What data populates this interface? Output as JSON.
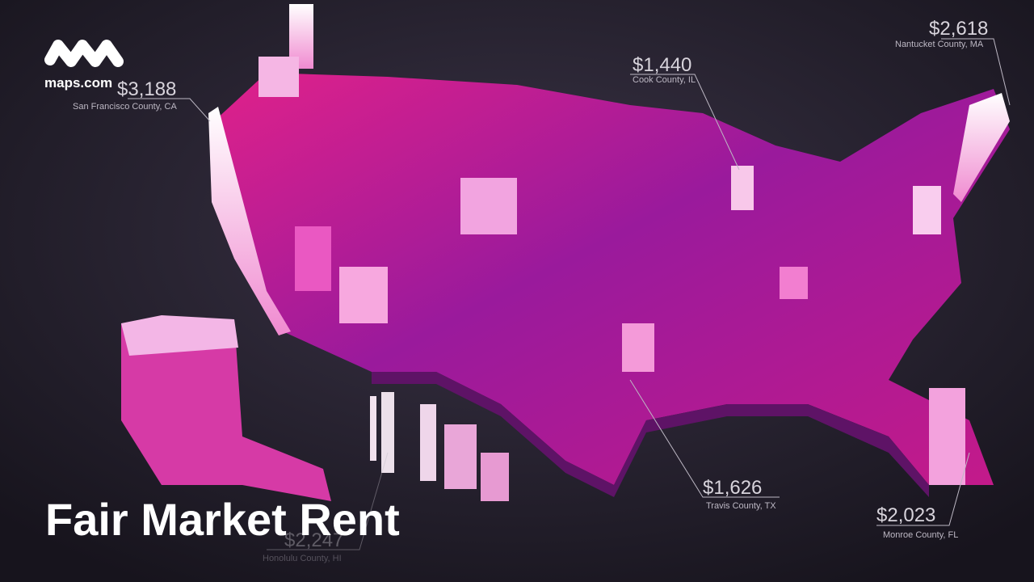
{
  "logo": {
    "text": "maps.com"
  },
  "title": "Fair Market Rent",
  "annotations": [
    {
      "value": "$3,188",
      "place": "San Francisco County, CA"
    },
    {
      "value": "$1,440",
      "place": "Cook County, IL"
    },
    {
      "value": "$2,618",
      "place": "Nantucket County, MA"
    },
    {
      "value": "$1,626",
      "place": "Travis County, TX"
    },
    {
      "value": "$2,023",
      "place": "Monroe County, FL"
    },
    {
      "value": "$2,247",
      "place": "Honolulu County, HI"
    }
  ]
}
